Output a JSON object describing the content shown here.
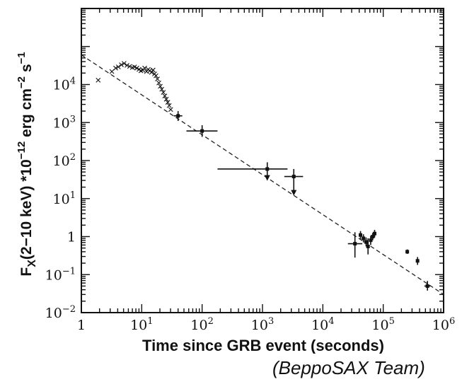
{
  "chart_data": {
    "type": "scatter",
    "title": "",
    "xlabel": "Time since GRB event (seconds)",
    "ylabel_parts": {
      "main": "F",
      "sub": "X",
      "mid": "(2−10 keV) *10",
      "sup1": "−12",
      "mid2": " erg cm",
      "sup2": "−2",
      "mid3": " s",
      "sup3": "−1"
    },
    "x_scale": "log",
    "y_scale": "log",
    "xlim": [
      1,
      1000000
    ],
    "ylim": [
      0.01,
      1000000
    ],
    "x_ticks": [
      {
        "value": 1,
        "base": "1",
        "exp": ""
      },
      {
        "value": 10,
        "base": "10",
        "exp": "1"
      },
      {
        "value": 100,
        "base": "10",
        "exp": "2"
      },
      {
        "value": 1000,
        "base": "10",
        "exp": "3"
      },
      {
        "value": 10000,
        "base": "10",
        "exp": "4"
      },
      {
        "value": 100000,
        "base": "10",
        "exp": "5"
      },
      {
        "value": 1000000,
        "base": "10",
        "exp": "6"
      }
    ],
    "y_ticks": [
      {
        "value": 0.01,
        "base": "10",
        "exp": "−2"
      },
      {
        "value": 0.1,
        "base": "10",
        "exp": "−1"
      },
      {
        "value": 1,
        "base": "1",
        "exp": ""
      },
      {
        "value": 10,
        "base": "10",
        "exp": "1"
      },
      {
        "value": 100,
        "base": "10",
        "exp": "2"
      },
      {
        "value": 1000,
        "base": "10",
        "exp": "3"
      },
      {
        "value": 10000,
        "base": "10",
        "exp": "4"
      }
    ],
    "fit_line": {
      "style": "dashed",
      "points": [
        [
          1,
          60000
        ],
        [
          1000000,
          0.03
        ]
      ]
    },
    "early_points": [
      [
        1.9,
        13000
      ],
      [
        3.2,
        22000
      ],
      [
        3.7,
        27000
      ],
      [
        4.1,
        29000
      ],
      [
        4.6,
        33000
      ],
      [
        5.1,
        36000
      ],
      [
        5.7,
        32000
      ],
      [
        6.3,
        30000
      ],
      [
        7.0,
        28000
      ],
      [
        7.6,
        29000
      ],
      [
        8.3,
        27000
      ],
      [
        9.0,
        25000
      ],
      [
        9.7,
        23000
      ],
      [
        10.4,
        24000
      ],
      [
        11.2,
        27000
      ],
      [
        12.0,
        22000
      ],
      [
        12.8,
        25000
      ],
      [
        13.6,
        23000
      ],
      [
        14.5,
        21000
      ],
      [
        15.4,
        24000
      ],
      [
        16.3,
        19000
      ],
      [
        17.2,
        17000
      ],
      [
        18.2,
        14000
      ],
      [
        19.2,
        11000
      ],
      [
        20.3,
        9000
      ],
      [
        21.5,
        7500
      ],
      [
        22.8,
        6200
      ],
      [
        24.1,
        5000
      ],
      [
        25.5,
        4100
      ],
      [
        27.0,
        3400
      ],
      [
        28.5,
        2800
      ],
      [
        30.2,
        2200
      ]
    ],
    "error_points": [
      {
        "x": 40,
        "y": 1500,
        "xerr": [
          34,
          47
        ],
        "yerr": [
          1100,
          2000
        ],
        "upper_limit": false
      },
      {
        "x": 100,
        "y": 600,
        "xerr": [
          55,
          180
        ],
        "yerr": [
          420,
          850
        ],
        "upper_limit": false
      },
      {
        "x": 1200,
        "y": 60,
        "xerr": [
          180,
          2600
        ],
        "yerr": [
          32,
          90
        ],
        "upper_limit": true
      },
      {
        "x": 3300,
        "y": 38,
        "xerr": [
          2300,
          4700
        ],
        "yerr": [
          13,
          60
        ],
        "upper_limit": true
      },
      {
        "x": 34000,
        "y": 0.65,
        "xerr": [
          26000,
          45000
        ],
        "yerr": [
          0.28,
          1.3
        ],
        "upper_limit": false
      },
      {
        "x": 42000,
        "y": 1.1,
        "xerr": [
          40000,
          44000
        ],
        "yerr": [
          0.85,
          1.4
        ],
        "upper_limit": false
      },
      {
        "x": 47000,
        "y": 0.9,
        "xerr": [
          45000,
          49000
        ],
        "yerr": [
          0.7,
          1.15
        ],
        "upper_limit": false
      },
      {
        "x": 52000,
        "y": 0.72,
        "xerr": [
          50000,
          54000
        ],
        "yerr": [
          0.55,
          0.95
        ],
        "upper_limit": false
      },
      {
        "x": 56000,
        "y": 0.55,
        "xerr": [
          54000,
          58000
        ],
        "yerr": [
          0.34,
          0.9
        ],
        "upper_limit": false
      },
      {
        "x": 62000,
        "y": 0.8,
        "xerr": [
          60000,
          64000
        ],
        "yerr": [
          0.6,
          1.05
        ],
        "upper_limit": false
      },
      {
        "x": 67000,
        "y": 1.0,
        "xerr": [
          65000,
          69000
        ],
        "yerr": [
          0.8,
          1.25
        ],
        "upper_limit": false
      },
      {
        "x": 72000,
        "y": 1.2,
        "xerr": [
          70000,
          74000
        ],
        "yerr": [
          0.95,
          1.5
        ],
        "upper_limit": false
      },
      {
        "x": 250000,
        "y": 0.4,
        "xerr": [
          240000,
          260000
        ],
        "yerr": [
          0.35,
          0.46
        ],
        "upper_limit": false
      },
      {
        "x": 370000,
        "y": 0.23,
        "xerr": [
          355000,
          385000
        ],
        "yerr": [
          0.18,
          0.29
        ],
        "upper_limit": false
      },
      {
        "x": 540000,
        "y": 0.05,
        "xerr": [
          480000,
          600000
        ],
        "yerr": [
          0.038,
          0.068
        ],
        "upper_limit": false
      }
    ],
    "grid": false,
    "legend": "none"
  },
  "credit": "(BeppoSAX Team)"
}
